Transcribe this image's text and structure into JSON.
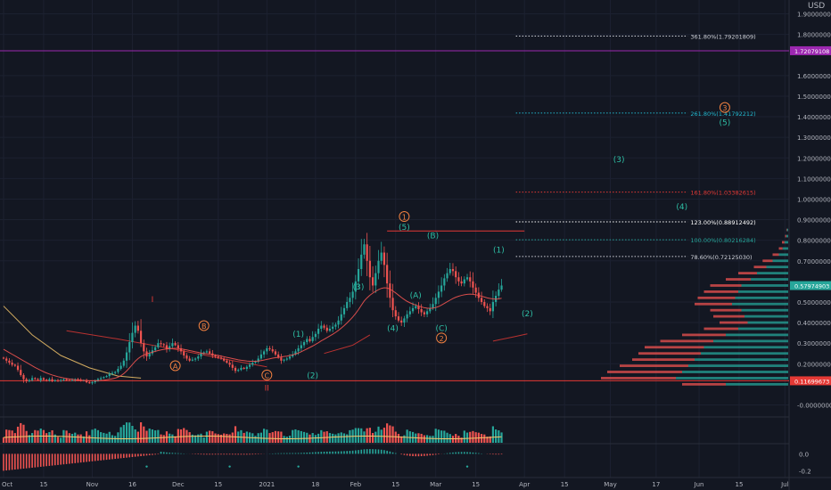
{
  "header": {
    "currency": "USD",
    "quote_dot": "30"
  },
  "colors": {
    "bg": "#131722",
    "grid": "#1c2130",
    "axis_text": "#b2b5be",
    "up": "#26a69a",
    "down": "#ef5350",
    "wave_cyan": "#2ebfa5",
    "wave_orange": "#f08040",
    "red_mark": "#e53935",
    "magenta": "#9c27b0",
    "sma": "#f5c66b",
    "fib_white": "#d1d4dc"
  },
  "chart_data": {
    "type": "candlestick",
    "title": "",
    "ylim": [
      -0.05,
      1.95
    ],
    "y_axis": {
      "ticks": [
        {
          "v": 1.9,
          "label": "1.90000000"
        },
        {
          "v": 1.8,
          "label": "1.80000000"
        },
        {
          "v": 1.6,
          "label": "1.60000000"
        },
        {
          "v": 1.5,
          "label": "1.50000000"
        },
        {
          "v": 1.4,
          "label": "1.40000000"
        },
        {
          "v": 1.3,
          "label": "1.30000000"
        },
        {
          "v": 1.2,
          "label": "1.20000000"
        },
        {
          "v": 1.1,
          "label": "1.10000000"
        },
        {
          "v": 1.0,
          "label": "1.00000000"
        },
        {
          "v": 0.9,
          "label": "0.90000000"
        },
        {
          "v": 0.8,
          "label": "0.80000000"
        },
        {
          "v": 0.7,
          "label": "0.70000000"
        },
        {
          "v": 0.5,
          "label": "0.50000000"
        },
        {
          "v": 0.4,
          "label": "0.40000000"
        },
        {
          "v": 0.3,
          "label": "0.30000000"
        },
        {
          "v": 0.2,
          "label": "0.20000000"
        },
        {
          "v": 0.0,
          "label": "-0.00000000"
        }
      ],
      "price_tags": [
        {
          "v": 1.72079108,
          "label": "1.72079108",
          "color": "#9c27b0"
        },
        {
          "v": 0.5797,
          "label": "0.57974903",
          "color": "#26a69a"
        },
        {
          "v": 0.11699673,
          "label": "0.11699673",
          "color": "#e53935"
        }
      ]
    },
    "x_axis": {
      "ticks": [
        {
          "i": 0,
          "label": "Oct"
        },
        {
          "i": 14,
          "label": "15"
        },
        {
          "i": 31,
          "label": "Nov"
        },
        {
          "i": 45,
          "label": "16"
        },
        {
          "i": 61,
          "label": "Dec"
        },
        {
          "i": 75,
          "label": "15"
        },
        {
          "i": 92,
          "label": "2021"
        },
        {
          "i": 109,
          "label": "18"
        },
        {
          "i": 123,
          "label": "Feb"
        },
        {
          "i": 137,
          "label": "15"
        },
        {
          "i": 151,
          "label": "Mar"
        },
        {
          "i": 165,
          "label": "15"
        },
        {
          "i": 182,
          "label": "Apr"
        },
        {
          "i": 196,
          "label": "15"
        },
        {
          "i": 212,
          "label": "May"
        },
        {
          "i": 228,
          "label": "17"
        },
        {
          "i": 243,
          "label": "Jun"
        },
        {
          "i": 257,
          "label": "15"
        },
        {
          "i": 273,
          "label": "Jul"
        }
      ]
    },
    "closes": [
      0.225,
      0.215,
      0.205,
      0.195,
      0.19,
      0.17,
      0.145,
      0.125,
      0.115,
      0.12,
      0.13,
      0.125,
      0.12,
      0.13,
      0.122,
      0.118,
      0.125,
      0.115,
      0.12,
      0.118,
      0.12,
      0.125,
      0.12,
      0.118,
      0.12,
      0.125,
      0.122,
      0.118,
      0.12,
      0.11,
      0.105,
      0.11,
      0.118,
      0.125,
      0.13,
      0.135,
      0.14,
      0.15,
      0.155,
      0.16,
      0.175,
      0.19,
      0.215,
      0.255,
      0.305,
      0.35,
      0.385,
      0.36,
      0.3,
      0.26,
      0.235,
      0.25,
      0.265,
      0.28,
      0.3,
      0.295,
      0.29,
      0.27,
      0.285,
      0.3,
      0.29,
      0.275,
      0.26,
      0.24,
      0.225,
      0.215,
      0.22,
      0.225,
      0.235,
      0.25,
      0.255,
      0.26,
      0.25,
      0.24,
      0.235,
      0.23,
      0.225,
      0.215,
      0.205,
      0.195,
      0.18,
      0.165,
      0.17,
      0.18,
      0.175,
      0.185,
      0.195,
      0.205,
      0.21,
      0.225,
      0.245,
      0.26,
      0.275,
      0.27,
      0.26,
      0.245,
      0.23,
      0.215,
      0.22,
      0.225,
      0.235,
      0.245,
      0.26,
      0.275,
      0.29,
      0.305,
      0.32,
      0.31,
      0.33,
      0.345,
      0.37,
      0.385,
      0.375,
      0.36,
      0.37,
      0.38,
      0.39,
      0.41,
      0.44,
      0.47,
      0.5,
      0.52,
      0.55,
      0.6,
      0.66,
      0.73,
      0.78,
      0.7,
      0.62,
      0.58,
      0.64,
      0.7,
      0.74,
      0.68,
      0.59,
      0.52,
      0.46,
      0.43,
      0.41,
      0.4,
      0.42,
      0.44,
      0.455,
      0.47,
      0.48,
      0.465,
      0.45,
      0.44,
      0.455,
      0.47,
      0.49,
      0.52,
      0.55,
      0.58,
      0.615,
      0.64,
      0.66,
      0.65,
      0.62,
      0.6,
      0.59,
      0.61,
      0.62,
      0.6,
      0.57,
      0.545,
      0.52,
      0.5,
      0.48,
      0.47,
      0.455,
      0.5,
      0.53,
      0.56,
      0.58
    ],
    "sma": [
      0.27,
      0.262,
      0.254,
      0.246,
      0.238,
      0.23,
      0.222,
      0.214,
      0.206,
      0.198,
      0.19,
      0.182,
      0.175,
      0.168,
      0.161,
      0.155,
      0.15,
      0.145,
      0.141,
      0.137,
      0.134,
      0.131,
      0.128,
      0.126,
      0.124,
      0.122,
      0.121,
      0.12,
      0.119,
      0.118,
      0.117,
      0.117,
      0.117,
      0.118,
      0.119,
      0.12,
      0.122,
      0.124,
      0.127,
      0.13,
      0.135,
      0.142,
      0.152,
      0.165,
      0.18,
      0.196,
      0.212,
      0.225,
      0.235,
      0.242,
      0.248,
      0.252,
      0.256,
      0.26,
      0.264,
      0.267,
      0.27,
      0.272,
      0.273,
      0.274,
      0.275,
      0.274,
      0.272,
      0.27,
      0.267,
      0.264,
      0.261,
      0.258,
      0.255,
      0.252,
      0.25,
      0.248,
      0.246,
      0.244,
      0.242,
      0.24,
      0.237,
      0.234,
      0.231,
      0.228,
      0.225,
      0.222,
      0.219,
      0.217,
      0.215,
      0.213,
      0.212,
      0.212,
      0.212,
      0.213,
      0.215,
      0.218,
      0.221,
      0.224,
      0.227,
      0.229,
      0.231,
      0.233,
      0.235,
      0.237,
      0.24,
      0.243,
      0.247,
      0.252,
      0.258,
      0.265,
      0.272,
      0.279,
      0.286,
      0.294,
      0.302,
      0.311,
      0.319,
      0.327,
      0.335,
      0.343,
      0.352,
      0.362,
      0.373,
      0.385,
      0.398,
      0.412,
      0.427,
      0.444,
      0.463,
      0.484,
      0.505,
      0.52,
      0.533,
      0.543,
      0.552,
      0.56,
      0.566,
      0.569,
      0.568,
      0.563,
      0.554,
      0.544,
      0.533,
      0.522,
      0.512,
      0.503,
      0.496,
      0.49,
      0.485,
      0.48,
      0.476,
      0.472,
      0.47,
      0.469,
      0.47,
      0.473,
      0.478,
      0.485,
      0.493,
      0.501,
      0.509,
      0.517,
      0.523,
      0.528,
      0.532,
      0.535,
      0.537,
      0.538,
      0.537,
      0.535,
      0.532,
      0.528,
      0.524,
      0.52,
      0.517,
      0.515,
      0.514,
      0.515,
      0.518
    ],
    "sma_long": [
      {
        "i": 0,
        "v": 0.48
      },
      {
        "i": 10,
        "v": 0.34
      },
      {
        "i": 20,
        "v": 0.24
      },
      {
        "i": 30,
        "v": 0.18
      },
      {
        "i": 40,
        "v": 0.14
      },
      {
        "i": 48,
        "v": 0.13
      }
    ],
    "arcs": [
      {
        "color": "#e53935",
        "pts": [
          {
            "i": 22,
            "v": 0.36
          },
          {
            "i": 40,
            "v": 0.32
          },
          {
            "i": 60,
            "v": 0.27
          },
          {
            "i": 80,
            "v": 0.215
          },
          {
            "i": 92,
            "v": 0.185
          }
        ]
      },
      {
        "color": "#e53935",
        "pts": [
          {
            "i": 112,
            "v": 0.25
          },
          {
            "i": 122,
            "v": 0.29
          },
          {
            "i": 128,
            "v": 0.34
          }
        ]
      },
      {
        "color": "#e53935",
        "pts": [
          {
            "i": 171,
            "v": 0.31
          },
          {
            "i": 178,
            "v": 0.33
          },
          {
            "i": 183,
            "v": 0.345
          }
        ]
      }
    ],
    "h_lines": [
      {
        "v": 1.72079108,
        "i0": -1,
        "i1": -1,
        "color": "#9c27b0"
      },
      {
        "v": 0.11699673,
        "i0": -1,
        "i1": -1,
        "color": "#e53935"
      },
      {
        "v": 0.845,
        "i0": 134,
        "i1": 182,
        "color": "#e53935"
      }
    ],
    "fib_levels": [
      {
        "v": 1.79201809,
        "label": "361.80%(1.79201809)",
        "color": "#d1d4dc"
      },
      {
        "v": 1.41792212,
        "label": "261.80%(1.41792212)",
        "color": "#22b8cf"
      },
      {
        "v": 1.03382615,
        "label": "161.80%(1.03382615)",
        "color": "#e53935"
      },
      {
        "v": 0.88912492,
        "label": "123.00%(0.88912492)",
        "color": "#ffffff"
      },
      {
        "v": 0.80216284,
        "label": "100.00%(0.80216284)",
        "color": "#26a69a"
      },
      {
        "v": 0.7212503,
        "label": "78.60%(0.72125030)",
        "color": "#d1d4dc"
      }
    ],
    "waves": [
      {
        "text": "(A)",
        "i": 60,
        "v": 0.175,
        "color": "#f08040",
        "circle": true
      },
      {
        "text": "(B)",
        "i": 70,
        "v": 0.37,
        "color": "#f08040",
        "circle": true
      },
      {
        "text": "(C)",
        "i": 92,
        "v": 0.13,
        "color": "#f08040",
        "circle": true
      },
      {
        "text": "I",
        "i": 52,
        "v": 0.5,
        "color": "#e53935",
        "circle": false
      },
      {
        "text": "II",
        "i": 92,
        "v": 0.07,
        "color": "#e53935",
        "circle": false
      },
      {
        "text": "(1)",
        "i": 103,
        "v": 0.33,
        "color": "#2ebfa5",
        "circle": false
      },
      {
        "text": "(2)",
        "i": 108,
        "v": 0.13,
        "color": "#2ebfa5",
        "circle": false
      },
      {
        "text": "(3)",
        "i": 124,
        "v": 0.56,
        "color": "#2ebfa5",
        "circle": false
      },
      {
        "text": "(4)",
        "i": 136,
        "v": 0.36,
        "color": "#2ebfa5",
        "circle": false
      },
      {
        "text": "(5)",
        "i": 140,
        "v": 0.85,
        "color": "#2ebfa5",
        "circle": false
      },
      {
        "text": "1",
        "i": 140,
        "v": 0.9,
        "color": "#f08040",
        "circle": true
      },
      {
        "text": "(A)",
        "i": 144,
        "v": 0.52,
        "color": "#2ebfa5",
        "circle": false
      },
      {
        "text": "(B)",
        "i": 150,
        "v": 0.81,
        "color": "#2ebfa5",
        "circle": false
      },
      {
        "text": "(C)",
        "i": 153,
        "v": 0.36,
        "color": "#2ebfa5",
        "circle": false
      },
      {
        "text": "2",
        "i": 153,
        "v": 0.31,
        "color": "#f08040",
        "circle": true
      },
      {
        "text": "(1)",
        "i": 173,
        "v": 0.74,
        "color": "#2ebfa5",
        "circle": false
      },
      {
        "text": "(2)",
        "i": 183,
        "v": 0.43,
        "color": "#2ebfa5",
        "circle": false
      },
      {
        "text": "(3)",
        "i": 215,
        "v": 1.18,
        "color": "#2ebfa5",
        "circle": false
      },
      {
        "text": "(4)",
        "i": 237,
        "v": 0.95,
        "color": "#2ebfa5",
        "circle": false
      },
      {
        "text": "3",
        "i": 252,
        "v": 1.43,
        "color": "#f08040",
        "circle": true
      },
      {
        "text": "(5)",
        "i": 252,
        "v": 1.36,
        "color": "#2ebfa5",
        "circle": false
      }
    ],
    "volume_profile": [
      {
        "v": 0.85,
        "up": 0.002,
        "down": 0.001
      },
      {
        "v": 0.82,
        "up": 0.003,
        "down": 0.002
      },
      {
        "v": 0.79,
        "up": 0.006,
        "down": 0.004
      },
      {
        "v": 0.76,
        "up": 0.009,
        "down": 0.006
      },
      {
        "v": 0.73,
        "up": 0.015,
        "down": 0.01
      },
      {
        "v": 0.7,
        "up": 0.025,
        "down": 0.016
      },
      {
        "v": 0.67,
        "up": 0.035,
        "down": 0.02
      },
      {
        "v": 0.64,
        "up": 0.05,
        "down": 0.03
      },
      {
        "v": 0.61,
        "up": 0.06,
        "down": 0.04
      },
      {
        "v": 0.58,
        "up": 0.075,
        "down": 0.05
      },
      {
        "v": 0.55,
        "up": 0.08,
        "down": 0.055
      },
      {
        "v": 0.52,
        "up": 0.085,
        "down": 0.06
      },
      {
        "v": 0.49,
        "up": 0.09,
        "down": 0.06
      },
      {
        "v": 0.46,
        "up": 0.075,
        "down": 0.05
      },
      {
        "v": 0.43,
        "up": 0.07,
        "down": 0.05
      },
      {
        "v": 0.4,
        "up": 0.065,
        "down": 0.045
      },
      {
        "v": 0.37,
        "up": 0.08,
        "down": 0.055
      },
      {
        "v": 0.34,
        "up": 0.1,
        "down": 0.07
      },
      {
        "v": 0.31,
        "up": 0.12,
        "down": 0.085
      },
      {
        "v": 0.28,
        "up": 0.135,
        "down": 0.095
      },
      {
        "v": 0.25,
        "up": 0.14,
        "down": 0.1
      },
      {
        "v": 0.22,
        "up": 0.15,
        "down": 0.1
      },
      {
        "v": 0.19,
        "up": 0.16,
        "down": 0.11
      },
      {
        "v": 0.16,
        "up": 0.17,
        "down": 0.12
      },
      {
        "v": 0.13,
        "up": 0.18,
        "down": 0.12
      },
      {
        "v": 0.1,
        "up": 0.1,
        "down": 0.07
      }
    ],
    "oscillator": {
      "ticks": [
        {
          "v": 0.0,
          "label": "0.0"
        },
        {
          "v": -0.2,
          "label": "-0.2"
        }
      ],
      "ylim": [
        -0.28,
        0.12
      ]
    }
  }
}
